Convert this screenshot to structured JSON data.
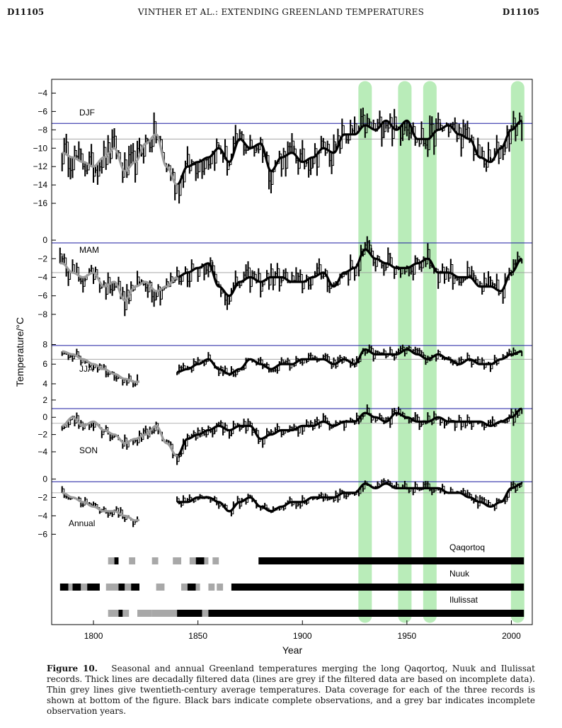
{
  "header": {
    "left": "D11105",
    "center": "VINTHER ET AL.: EXTENDING GREENLAND TEMPERATURES",
    "right": "D11105"
  },
  "caption": {
    "label": "Figure 10.",
    "text": "Seasonal and annual Greenland temperatures merging the long Qaqortoq, Nuuk and Ilulissat records. Thick lines are decadally filtered data (lines are grey if the filtered data are based on incomplete data). Thin grey lines give twentieth-century average temperatures. Data coverage for each of the three records is shown at bottom of the figure. Black bars indicate complete observations, and a grey bar indicates incomplete observation years."
  },
  "chart_data": {
    "type": "line",
    "xlabel": "Year",
    "ylabel": "Temperature/°C",
    "xlim": [
      1780,
      2010
    ],
    "xticks": [
      1800,
      1850,
      1900,
      1950,
      2000
    ],
    "highlight_years": [
      1930,
      1949,
      1961,
      2003
    ],
    "panels": [
      {
        "name": "DJF",
        "yticks": [
          -4,
          -6,
          -8,
          -10,
          -12,
          -14,
          -16
        ],
        "ylim": [
          -19,
          -2.5
        ],
        "ref_blue": -7.3,
        "ref_grey": -9.0,
        "data_start": 1785,
        "smooth_grey_until": 1840,
        "anchors": [
          [
            1785,
            -10.5
          ],
          [
            1790,
            -11.0
          ],
          [
            1795,
            -11.5
          ],
          [
            1800,
            -12.0
          ],
          [
            1805,
            -11.0
          ],
          [
            1810,
            -10.0
          ],
          [
            1815,
            -12.5
          ],
          [
            1820,
            -11.5
          ],
          [
            1825,
            -9.5
          ],
          [
            1830,
            -8.5
          ],
          [
            1835,
            -12.0
          ],
          [
            1840,
            -14.0
          ],
          [
            1845,
            -12.0
          ],
          [
            1850,
            -11.5
          ],
          [
            1855,
            -11.0
          ],
          [
            1860,
            -10.0
          ],
          [
            1865,
            -11.5
          ],
          [
            1870,
            -9.0
          ],
          [
            1875,
            -10.0
          ],
          [
            1880,
            -9.5
          ],
          [
            1885,
            -12.5
          ],
          [
            1890,
            -11.0
          ],
          [
            1895,
            -10.5
          ],
          [
            1900,
            -11.5
          ],
          [
            1905,
            -11.0
          ],
          [
            1910,
            -10.0
          ],
          [
            1915,
            -10.5
          ],
          [
            1920,
            -8.5
          ],
          [
            1925,
            -8.5
          ],
          [
            1930,
            -7.5
          ],
          [
            1935,
            -8.0
          ],
          [
            1940,
            -7.0
          ],
          [
            1945,
            -8.0
          ],
          [
            1950,
            -7.0
          ],
          [
            1955,
            -9.0
          ],
          [
            1960,
            -9.0
          ],
          [
            1965,
            -8.0
          ],
          [
            1970,
            -7.5
          ],
          [
            1975,
            -8.5
          ],
          [
            1980,
            -9.0
          ],
          [
            1985,
            -11.0
          ],
          [
            1990,
            -11.5
          ],
          [
            1995,
            -10.0
          ],
          [
            2000,
            -8.0
          ],
          [
            2005,
            -7.0
          ]
        ],
        "amplitude": 2.5
      },
      {
        "name": "MAM",
        "yticks": [
          0,
          -2,
          -4,
          -6,
          -8
        ],
        "ylim": [
          -10.3,
          1.0
        ],
        "ref_blue": -0.3,
        "ref_grey": -3.5,
        "data_start": 1784,
        "smooth_grey_until": 1840,
        "anchors": [
          [
            1785,
            -2.5
          ],
          [
            1790,
            -3.5
          ],
          [
            1795,
            -4.0
          ],
          [
            1800,
            -3.5
          ],
          [
            1805,
            -5.0
          ],
          [
            1810,
            -4.5
          ],
          [
            1815,
            -6.5
          ],
          [
            1820,
            -5.0
          ],
          [
            1825,
            -4.5
          ],
          [
            1830,
            -5.5
          ],
          [
            1835,
            -5.0
          ],
          [
            1840,
            -4.0
          ],
          [
            1845,
            -3.5
          ],
          [
            1850,
            -3.0
          ],
          [
            1855,
            -2.5
          ],
          [
            1860,
            -5.0
          ],
          [
            1865,
            -6.0
          ],
          [
            1870,
            -4.5
          ],
          [
            1875,
            -4.0
          ],
          [
            1880,
            -4.5
          ],
          [
            1885,
            -4.0
          ],
          [
            1890,
            -4.0
          ],
          [
            1895,
            -4.5
          ],
          [
            1900,
            -4.5
          ],
          [
            1905,
            -4.0
          ],
          [
            1910,
            -3.5
          ],
          [
            1915,
            -5.0
          ],
          [
            1920,
            -3.5
          ],
          [
            1925,
            -3.0
          ],
          [
            1930,
            -1.0
          ],
          [
            1935,
            -2.0
          ],
          [
            1940,
            -2.5
          ],
          [
            1945,
            -3.0
          ],
          [
            1950,
            -3.0
          ],
          [
            1955,
            -2.5
          ],
          [
            1960,
            -2.0
          ],
          [
            1965,
            -3.5
          ],
          [
            1970,
            -3.5
          ],
          [
            1975,
            -4.0
          ],
          [
            1980,
            -4.0
          ],
          [
            1985,
            -5.0
          ],
          [
            1990,
            -5.0
          ],
          [
            1995,
            -5.5
          ],
          [
            2000,
            -3.5
          ],
          [
            2005,
            -2.0
          ]
        ],
        "amplitude": 1.8
      },
      {
        "name": "JJA",
        "yticks": [
          8,
          6,
          4
        ],
        "ylim": [
          2.7,
          8.9
        ],
        "ref_blue": 7.9,
        "ref_grey": 6.5,
        "data_start": 1785,
        "data_gap": [
          1822,
          1840
        ],
        "smooth_grey_until": 1822,
        "anchors": [
          [
            1785,
            7.3
          ],
          [
            1790,
            7.0
          ],
          [
            1795,
            6.5
          ],
          [
            1800,
            6.0
          ],
          [
            1805,
            5.5
          ],
          [
            1810,
            5.0
          ],
          [
            1815,
            4.5
          ],
          [
            1820,
            4.2
          ],
          [
            1840,
            5.2
          ],
          [
            1845,
            5.5
          ],
          [
            1850,
            6.0
          ],
          [
            1855,
            6.5
          ],
          [
            1860,
            5.5
          ],
          [
            1865,
            5.0
          ],
          [
            1870,
            5.5
          ],
          [
            1875,
            6.5
          ],
          [
            1880,
            6.0
          ],
          [
            1885,
            5.5
          ],
          [
            1890,
            6.0
          ],
          [
            1895,
            6.0
          ],
          [
            1900,
            6.5
          ],
          [
            1905,
            6.5
          ],
          [
            1910,
            6.5
          ],
          [
            1915,
            6.0
          ],
          [
            1920,
            6.5
          ],
          [
            1925,
            6.0
          ],
          [
            1930,
            7.5
          ],
          [
            1935,
            7.0
          ],
          [
            1940,
            7.0
          ],
          [
            1945,
            7.0
          ],
          [
            1950,
            7.5
          ],
          [
            1955,
            7.0
          ],
          [
            1960,
            6.5
          ],
          [
            1965,
            7.0
          ],
          [
            1970,
            6.5
          ],
          [
            1975,
            6.0
          ],
          [
            1980,
            6.5
          ],
          [
            1985,
            6.0
          ],
          [
            1990,
            6.0
          ],
          [
            1995,
            6.5
          ],
          [
            2000,
            7.0
          ],
          [
            2005,
            7.3
          ]
        ],
        "amplitude": 0.8
      },
      {
        "name": "SON",
        "yticks": [
          2,
          0,
          -2,
          -4
        ],
        "ylim": [
          -6.3,
          2.4
        ],
        "ref_blue": 1.0,
        "ref_grey": -0.7,
        "data_start": 1785,
        "smooth_grey_until": 1840,
        "anchors": [
          [
            1785,
            -1.0
          ],
          [
            1790,
            0.0
          ],
          [
            1795,
            -1.0
          ],
          [
            1800,
            -0.5
          ],
          [
            1805,
            -1.5
          ],
          [
            1810,
            -2.0
          ],
          [
            1815,
            -3.0
          ],
          [
            1820,
            -2.5
          ],
          [
            1825,
            -2.0
          ],
          [
            1830,
            -1.0
          ],
          [
            1835,
            -3.0
          ],
          [
            1840,
            -4.5
          ],
          [
            1845,
            -2.5
          ],
          [
            1850,
            -2.0
          ],
          [
            1855,
            -1.5
          ],
          [
            1860,
            -1.0
          ],
          [
            1865,
            -1.5
          ],
          [
            1870,
            -1.0
          ],
          [
            1875,
            -1.0
          ],
          [
            1880,
            -2.5
          ],
          [
            1885,
            -2.0
          ],
          [
            1890,
            -1.5
          ],
          [
            1895,
            -1.5
          ],
          [
            1900,
            -1.0
          ],
          [
            1905,
            -1.0
          ],
          [
            1910,
            -0.5
          ],
          [
            1915,
            -1.0
          ],
          [
            1920,
            -0.5
          ],
          [
            1925,
            -0.5
          ],
          [
            1930,
            0.5
          ],
          [
            1935,
            0.0
          ],
          [
            1940,
            -0.5
          ],
          [
            1945,
            0.5
          ],
          [
            1950,
            0.0
          ],
          [
            1955,
            -0.5
          ],
          [
            1960,
            -0.5
          ],
          [
            1965,
            0.0
          ],
          [
            1970,
            -0.5
          ],
          [
            1975,
            -0.5
          ],
          [
            1980,
            -0.5
          ],
          [
            1985,
            -0.5
          ],
          [
            1990,
            -1.0
          ],
          [
            1995,
            -0.5
          ],
          [
            2000,
            0.0
          ],
          [
            2005,
            1.0
          ]
        ],
        "amplitude": 1.1
      },
      {
        "name": "Annual",
        "yticks": [
          0,
          -2,
          -4,
          -6
        ],
        "ylim": [
          -7.2,
          0.8
        ],
        "ref_blue": -0.3,
        "ref_grey": -1.5,
        "data_start": 1785,
        "data_gap": [
          1822,
          1840
        ],
        "smooth_grey_until": 1822,
        "anchors": [
          [
            1785,
            -1.5
          ],
          [
            1790,
            -2.0
          ],
          [
            1795,
            -2.5
          ],
          [
            1800,
            -3.0
          ],
          [
            1805,
            -3.5
          ],
          [
            1810,
            -3.5
          ],
          [
            1815,
            -4.0
          ],
          [
            1820,
            -4.5
          ],
          [
            1840,
            -2.5
          ],
          [
            1845,
            -2.5
          ],
          [
            1850,
            -2.0
          ],
          [
            1855,
            -2.0
          ],
          [
            1860,
            -2.5
          ],
          [
            1865,
            -3.5
          ],
          [
            1870,
            -2.5
          ],
          [
            1875,
            -2.0
          ],
          [
            1880,
            -3.0
          ],
          [
            1885,
            -3.5
          ],
          [
            1890,
            -3.0
          ],
          [
            1895,
            -2.5
          ],
          [
            1900,
            -2.5
          ],
          [
            1905,
            -2.0
          ],
          [
            1910,
            -2.0
          ],
          [
            1915,
            -2.0
          ],
          [
            1920,
            -1.5
          ],
          [
            1925,
            -1.5
          ],
          [
            1930,
            -0.5
          ],
          [
            1935,
            -1.0
          ],
          [
            1940,
            -0.5
          ],
          [
            1945,
            -1.0
          ],
          [
            1950,
            -1.0
          ],
          [
            1955,
            -1.0
          ],
          [
            1960,
            -1.0
          ],
          [
            1965,
            -1.0
          ],
          [
            1970,
            -1.5
          ],
          [
            1975,
            -1.5
          ],
          [
            1980,
            -2.0
          ],
          [
            1985,
            -2.5
          ],
          [
            1990,
            -3.0
          ],
          [
            1995,
            -2.5
          ],
          [
            2000,
            -1.0
          ],
          [
            2005,
            -0.5
          ]
        ],
        "amplitude": 0.8
      }
    ],
    "coverage": [
      {
        "name": "Qaqortoq",
        "segments": [
          [
            1807,
            1810,
            "grey"
          ],
          [
            1810,
            1812,
            "black"
          ],
          [
            1817,
            1820,
            "grey"
          ],
          [
            1828,
            1831,
            "grey"
          ],
          [
            1838,
            1842,
            "grey"
          ],
          [
            1846,
            1849,
            "grey"
          ],
          [
            1849,
            1853,
            "black"
          ],
          [
            1853,
            1855,
            "grey"
          ],
          [
            1857,
            1860,
            "grey"
          ],
          [
            1879,
            2006,
            "black"
          ]
        ]
      },
      {
        "name": "Nuuk",
        "segments": [
          [
            1784,
            1788,
            "black"
          ],
          [
            1788,
            1790,
            "grey"
          ],
          [
            1790,
            1794,
            "black"
          ],
          [
            1794,
            1797,
            "grey"
          ],
          [
            1797,
            1803,
            "black"
          ],
          [
            1806,
            1812,
            "grey"
          ],
          [
            1812,
            1815,
            "black"
          ],
          [
            1815,
            1818,
            "grey"
          ],
          [
            1818,
            1822,
            "black"
          ],
          [
            1830,
            1834,
            "grey"
          ],
          [
            1842,
            1845,
            "grey"
          ],
          [
            1845,
            1849,
            "black"
          ],
          [
            1849,
            1851,
            "grey"
          ],
          [
            1855,
            1858,
            "grey"
          ],
          [
            1859,
            1862,
            "grey"
          ],
          [
            1866,
            2006,
            "black"
          ]
        ]
      },
      {
        "name": "Ilulissat",
        "segments": [
          [
            1807,
            1812,
            "grey"
          ],
          [
            1812,
            1814,
            "black"
          ],
          [
            1814,
            1817,
            "grey"
          ],
          [
            1821,
            1828,
            "grey"
          ],
          [
            1828,
            1840,
            "grey"
          ],
          [
            1840,
            1852,
            "black"
          ],
          [
            1852,
            1855,
            "grey"
          ],
          [
            1855,
            2006,
            "black"
          ]
        ]
      }
    ]
  }
}
